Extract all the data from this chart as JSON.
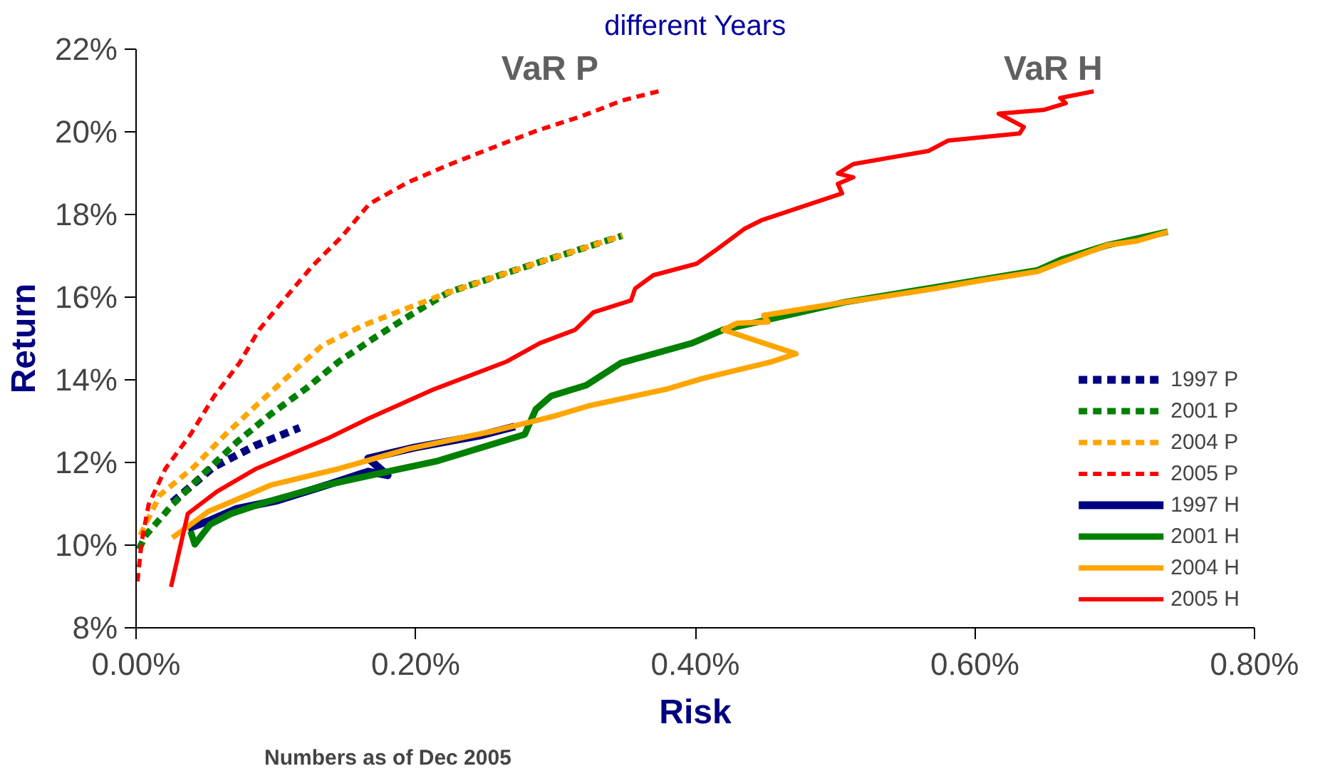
{
  "chart_data": {
    "type": "line",
    "title": "different Years",
    "xlabel": "Risk",
    "ylabel": "Return",
    "xlim": [
      0,
      0.8
    ],
    "xticks": [
      {
        "value": 0,
        "label": "0.00%"
      },
      {
        "value": 0.2,
        "label": "0.20%"
      },
      {
        "value": 0.4,
        "label": "0.40%"
      },
      {
        "value": 0.6,
        "label": "0.60%"
      },
      {
        "value": 0.8,
        "label": "0.80%"
      }
    ],
    "ylim": [
      8,
      22
    ],
    "yticks": [
      {
        "value": 8,
        "label": "8%"
      },
      {
        "value": 10,
        "label": "10%"
      },
      {
        "value": 12,
        "label": "12%"
      },
      {
        "value": 14,
        "label": "14%"
      },
      {
        "value": 16,
        "label": "16%"
      },
      {
        "value": 18,
        "label": "18%"
      },
      {
        "value": 20,
        "label": "20%"
      },
      {
        "value": 22,
        "label": "22%"
      }
    ],
    "grid": false,
    "legend": "bottom right",
    "marker": "none",
    "annotations": [
      "VaR P",
      "VaR H",
      "Numbers as of Dec 2005"
    ],
    "series": [
      {
        "name": "1997 P",
        "color": "#000080",
        "line_style": "dashed",
        "x": [
          0.026,
          0.055,
          0.086,
          0.117
        ],
        "values": [
          11.04,
          11.88,
          12.42,
          12.84
        ]
      },
      {
        "name": "2001 P",
        "color": "#008000",
        "line_style": "dashed",
        "x": [
          0.002,
          0.007,
          0.026,
          0.048,
          0.072,
          0.096,
          0.122,
          0.145,
          0.172,
          0.196,
          0.223,
          0.254,
          0.285,
          0.315,
          0.348
        ],
        "values": [
          9.9,
          10.24,
          10.98,
          11.72,
          12.49,
          13.16,
          13.8,
          14.44,
          15.05,
          15.56,
          16.11,
          16.46,
          16.81,
          17.13,
          17.49
        ]
      },
      {
        "name": "2004 P",
        "color": "#ffa500",
        "line_style": "dashed",
        "x": [
          0.003,
          0.017,
          0.041,
          0.064,
          0.086,
          0.109,
          0.133,
          0.162,
          0.193,
          0.223,
          0.254,
          0.285,
          0.315,
          0.348
        ],
        "values": [
          10.24,
          11.21,
          11.88,
          12.68,
          13.38,
          14.09,
          14.83,
          15.31,
          15.72,
          16.11,
          16.46,
          16.81,
          17.13,
          17.49
        ]
      },
      {
        "name": "2005 P",
        "color": "#ff0000",
        "line_style": "dashed",
        "x": [
          0.001,
          0.004,
          0.009,
          0.021,
          0.039,
          0.056,
          0.074,
          0.088,
          0.106,
          0.126,
          0.147,
          0.167,
          0.194,
          0.225,
          0.256,
          0.286,
          0.318,
          0.348,
          0.377
        ],
        "values": [
          9.12,
          10.08,
          10.98,
          11.85,
          12.68,
          13.61,
          14.41,
          15.21,
          15.95,
          16.75,
          17.46,
          18.26,
          18.77,
          19.22,
          19.63,
          20.02,
          20.37,
          20.76,
          21.01
        ]
      },
      {
        "name": "1997 H",
        "color": "#000080",
        "line_style": "solid",
        "x": [
          0.037,
          0.053,
          0.072,
          0.101,
          0.137,
          0.166,
          0.18,
          0.166,
          0.199,
          0.246,
          0.271
        ],
        "values": [
          10.4,
          10.6,
          10.88,
          11.08,
          11.46,
          11.78,
          11.69,
          12.1,
          12.36,
          12.65,
          12.87
        ]
      },
      {
        "name": "2001 H",
        "color": "#008000",
        "line_style": "solid",
        "x": [
          0.039,
          0.042,
          0.053,
          0.068,
          0.093,
          0.137,
          0.18,
          0.216,
          0.278,
          0.286,
          0.297,
          0.322,
          0.347,
          0.398,
          0.42,
          0.507,
          0.572,
          0.645,
          0.662,
          0.695,
          0.738
        ],
        "values": [
          10.34,
          10.02,
          10.5,
          10.76,
          11.04,
          11.46,
          11.78,
          12.04,
          12.68,
          13.29,
          13.61,
          13.87,
          14.41,
          14.89,
          15.21,
          15.88,
          16.24,
          16.65,
          16.91,
          17.26,
          17.58
        ]
      },
      {
        "name": "2004 H",
        "color": "#ffa500",
        "line_style": "solid",
        "x": [
          0.026,
          0.052,
          0.097,
          0.145,
          0.195,
          0.253,
          0.3,
          0.325,
          0.379,
          0.405,
          0.455,
          0.472,
          0.42,
          0.43,
          0.452,
          0.449,
          0.507,
          0.528,
          0.572,
          0.604,
          0.645,
          0.659,
          0.695,
          0.716,
          0.738
        ],
        "values": [
          10.18,
          10.82,
          11.46,
          11.85,
          12.33,
          12.74,
          13.13,
          13.38,
          13.77,
          14.03,
          14.44,
          14.63,
          15.21,
          15.37,
          15.4,
          15.56,
          15.88,
          15.98,
          16.21,
          16.4,
          16.62,
          16.81,
          17.26,
          17.36,
          17.58
        ]
      },
      {
        "name": "2005 H",
        "color": "#ff0000",
        "line_style": "solid",
        "x": [
          0.025,
          0.037,
          0.058,
          0.086,
          0.137,
          0.166,
          0.213,
          0.265,
          0.289,
          0.314,
          0.327,
          0.354,
          0.357,
          0.37,
          0.401,
          0.416,
          0.435,
          0.448,
          0.505,
          0.502,
          0.513,
          0.502,
          0.513,
          0.567,
          0.581,
          0.632,
          0.635,
          0.617,
          0.649,
          0.665,
          0.661,
          0.685
        ],
        "values": [
          8.99,
          10.76,
          11.3,
          11.85,
          12.58,
          13.06,
          13.77,
          14.44,
          14.89,
          15.21,
          15.63,
          15.92,
          16.21,
          16.53,
          16.81,
          17.17,
          17.65,
          17.87,
          18.51,
          18.74,
          18.9,
          18.99,
          19.22,
          19.54,
          19.79,
          19.96,
          20.12,
          20.44,
          20.53,
          20.69,
          20.82,
          20.98
        ]
      }
    ]
  }
}
